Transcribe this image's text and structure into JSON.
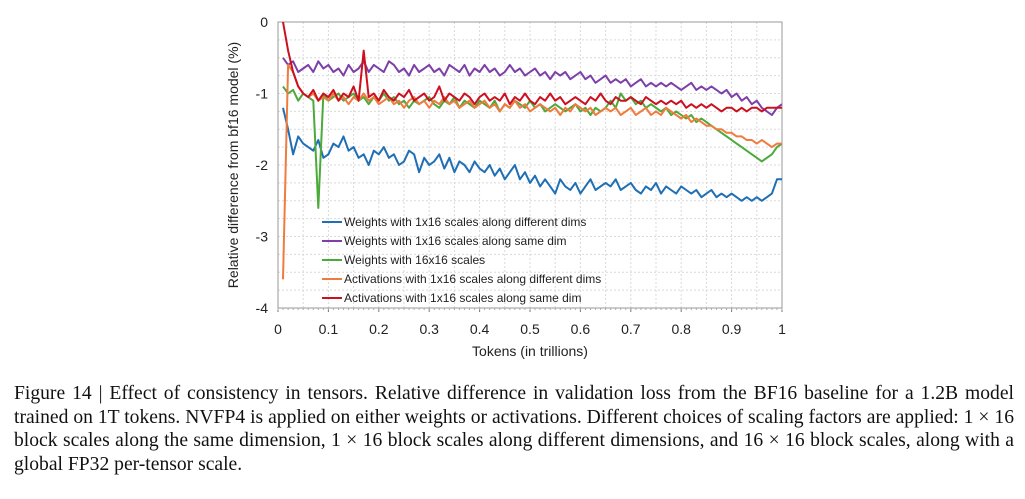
{
  "chart_data": {
    "type": "line",
    "title": "",
    "xlabel": "Tokens (in trillions)",
    "ylabel": "Relative difference from bf16 model (%)",
    "xlim": [
      0,
      1
    ],
    "ylim": [
      -4,
      0
    ],
    "x_ticks": [
      "0",
      "0.1",
      "0.2",
      "0.3",
      "0.4",
      "0.5",
      "0.6",
      "0.7",
      "0.8",
      "0.9",
      "1"
    ],
    "y_ticks": [
      "0",
      "-1",
      "-2",
      "-3",
      "-4"
    ],
    "grid": true,
    "legend_position": "lower-center",
    "series": [
      {
        "name": "Weights with 1x16 scales along different dims",
        "color": "#1f6fb5",
        "x": [
          0.01,
          0.02,
          0.03,
          0.04,
          0.05,
          0.06,
          0.07,
          0.08,
          0.09,
          0.1,
          0.11,
          0.12,
          0.13,
          0.14,
          0.15,
          0.16,
          0.17,
          0.18,
          0.19,
          0.2,
          0.21,
          0.22,
          0.23,
          0.24,
          0.25,
          0.26,
          0.27,
          0.28,
          0.29,
          0.3,
          0.31,
          0.32,
          0.33,
          0.34,
          0.35,
          0.36,
          0.37,
          0.38,
          0.39,
          0.4,
          0.41,
          0.42,
          0.43,
          0.44,
          0.45,
          0.46,
          0.47,
          0.48,
          0.49,
          0.5,
          0.51,
          0.52,
          0.53,
          0.54,
          0.55,
          0.56,
          0.57,
          0.58,
          0.59,
          0.6,
          0.61,
          0.62,
          0.63,
          0.64,
          0.65,
          0.66,
          0.67,
          0.68,
          0.69,
          0.7,
          0.71,
          0.72,
          0.73,
          0.74,
          0.75,
          0.76,
          0.77,
          0.78,
          0.79,
          0.8,
          0.81,
          0.82,
          0.83,
          0.84,
          0.85,
          0.86,
          0.87,
          0.88,
          0.89,
          0.9,
          0.91,
          0.92,
          0.93,
          0.94,
          0.95,
          0.96,
          0.97,
          0.98,
          0.99,
          1.0
        ],
        "values": [
          -1.2,
          -1.5,
          -1.85,
          -1.6,
          -1.7,
          -1.75,
          -1.8,
          -1.65,
          -1.9,
          -1.85,
          -1.7,
          -1.75,
          -1.6,
          -1.8,
          -1.75,
          -1.9,
          -1.85,
          -2.0,
          -1.8,
          -1.85,
          -1.75,
          -1.9,
          -1.85,
          -2.0,
          -1.95,
          -1.8,
          -1.85,
          -2.1,
          -1.9,
          -2.0,
          -1.95,
          -1.85,
          -2.05,
          -1.9,
          -2.1,
          -1.95,
          -2.0,
          -2.1,
          -1.95,
          -2.05,
          -2.1,
          -2.0,
          -2.15,
          -2.05,
          -2.2,
          -2.1,
          -2.0,
          -2.2,
          -2.1,
          -2.25,
          -2.15,
          -2.3,
          -2.2,
          -2.3,
          -2.4,
          -2.2,
          -2.3,
          -2.35,
          -2.25,
          -2.4,
          -2.3,
          -2.2,
          -2.35,
          -2.3,
          -2.25,
          -2.3,
          -2.2,
          -2.35,
          -2.3,
          -2.25,
          -2.35,
          -2.4,
          -2.3,
          -2.35,
          -2.25,
          -2.4,
          -2.3,
          -2.35,
          -2.4,
          -2.3,
          -2.35,
          -2.4,
          -2.35,
          -2.45,
          -2.4,
          -2.35,
          -2.45,
          -2.4,
          -2.45,
          -2.4,
          -2.45,
          -2.5,
          -2.45,
          -2.5,
          -2.45,
          -2.5,
          -2.45,
          -2.4,
          -2.2,
          -2.2
        ]
      },
      {
        "name": "Weights with 1x16 scales along same dim",
        "color": "#7d3fa8",
        "x": [
          0.01,
          0.02,
          0.03,
          0.04,
          0.05,
          0.06,
          0.07,
          0.08,
          0.09,
          0.1,
          0.11,
          0.12,
          0.13,
          0.14,
          0.15,
          0.16,
          0.17,
          0.18,
          0.19,
          0.2,
          0.21,
          0.22,
          0.23,
          0.24,
          0.25,
          0.26,
          0.27,
          0.28,
          0.29,
          0.3,
          0.31,
          0.32,
          0.33,
          0.34,
          0.35,
          0.36,
          0.37,
          0.38,
          0.39,
          0.4,
          0.41,
          0.42,
          0.43,
          0.44,
          0.45,
          0.46,
          0.47,
          0.48,
          0.49,
          0.5,
          0.51,
          0.52,
          0.53,
          0.54,
          0.55,
          0.56,
          0.57,
          0.58,
          0.59,
          0.6,
          0.61,
          0.62,
          0.63,
          0.64,
          0.65,
          0.66,
          0.67,
          0.68,
          0.69,
          0.7,
          0.71,
          0.72,
          0.73,
          0.74,
          0.75,
          0.76,
          0.77,
          0.78,
          0.79,
          0.8,
          0.81,
          0.82,
          0.83,
          0.84,
          0.85,
          0.86,
          0.87,
          0.88,
          0.89,
          0.9,
          0.91,
          0.92,
          0.93,
          0.94,
          0.95,
          0.96,
          0.97,
          0.98,
          0.99,
          1.0
        ],
        "values": [
          -0.5,
          -0.6,
          -0.55,
          -0.7,
          -0.65,
          -0.6,
          -0.7,
          -0.55,
          -0.65,
          -0.6,
          -0.7,
          -0.65,
          -0.75,
          -0.6,
          -0.7,
          -0.65,
          -0.55,
          -0.7,
          -0.6,
          -0.65,
          -0.7,
          -0.55,
          -0.6,
          -0.7,
          -0.65,
          -0.75,
          -0.6,
          -0.7,
          -0.65,
          -0.6,
          -0.7,
          -0.65,
          -0.75,
          -0.6,
          -0.65,
          -0.7,
          -0.6,
          -0.75,
          -0.65,
          -0.7,
          -0.6,
          -0.7,
          -0.65,
          -0.75,
          -0.7,
          -0.6,
          -0.7,
          -0.65,
          -0.75,
          -0.7,
          -0.65,
          -0.75,
          -0.7,
          -0.8,
          -0.7,
          -0.75,
          -0.7,
          -0.8,
          -0.75,
          -0.7,
          -0.8,
          -0.75,
          -0.85,
          -0.8,
          -0.75,
          -0.85,
          -0.8,
          -0.85,
          -0.8,
          -0.9,
          -0.85,
          -0.8,
          -0.9,
          -0.85,
          -0.9,
          -0.85,
          -0.9,
          -0.85,
          -0.9,
          -0.95,
          -0.9,
          -0.85,
          -0.95,
          -0.9,
          -0.95,
          -0.9,
          -0.95,
          -1.0,
          -0.95,
          -1.05,
          -1.0,
          -1.1,
          -1.05,
          -1.15,
          -1.1,
          -1.2,
          -1.25,
          -1.3,
          -1.2,
          -1.15
        ]
      },
      {
        "name": "Weights with 16x16 scales",
        "color": "#4caa3a",
        "x": [
          0.01,
          0.02,
          0.03,
          0.04,
          0.05,
          0.06,
          0.07,
          0.08,
          0.09,
          0.1,
          0.11,
          0.12,
          0.13,
          0.14,
          0.15,
          0.16,
          0.17,
          0.18,
          0.19,
          0.2,
          0.21,
          0.22,
          0.23,
          0.24,
          0.25,
          0.26,
          0.27,
          0.28,
          0.29,
          0.3,
          0.31,
          0.32,
          0.33,
          0.34,
          0.35,
          0.36,
          0.37,
          0.38,
          0.39,
          0.4,
          0.41,
          0.42,
          0.43,
          0.44,
          0.45,
          0.46,
          0.47,
          0.48,
          0.49,
          0.5,
          0.51,
          0.52,
          0.53,
          0.54,
          0.55,
          0.56,
          0.57,
          0.58,
          0.59,
          0.6,
          0.61,
          0.62,
          0.63,
          0.64,
          0.65,
          0.66,
          0.67,
          0.68,
          0.69,
          0.7,
          0.71,
          0.72,
          0.73,
          0.74,
          0.75,
          0.76,
          0.77,
          0.78,
          0.79,
          0.8,
          0.81,
          0.82,
          0.83,
          0.84,
          0.85,
          0.86,
          0.87,
          0.88,
          0.89,
          0.9,
          0.91,
          0.92,
          0.93,
          0.94,
          0.95,
          0.96,
          0.97,
          0.98,
          0.99,
          1.0
        ],
        "values": [
          -0.9,
          -1.0,
          -0.95,
          -1.1,
          -1.0,
          -1.05,
          -1.1,
          -2.6,
          -1.0,
          -1.1,
          -1.05,
          -1.0,
          -1.1,
          -1.05,
          -1.0,
          -1.1,
          -1.05,
          -1.15,
          -1.05,
          -1.1,
          -1.0,
          -1.1,
          -1.05,
          -1.15,
          -1.1,
          -1.2,
          -1.1,
          -1.15,
          -1.1,
          -1.05,
          -1.15,
          -1.2,
          -1.1,
          -1.15,
          -1.05,
          -1.2,
          -1.1,
          -1.15,
          -1.2,
          -1.1,
          -1.15,
          -1.2,
          -1.1,
          -1.25,
          -1.15,
          -1.2,
          -1.1,
          -1.15,
          -1.2,
          -1.1,
          -1.2,
          -1.15,
          -1.25,
          -1.2,
          -1.15,
          -1.2,
          -1.25,
          -1.2,
          -1.15,
          -1.25,
          -1.2,
          -1.3,
          -1.2,
          -1.25,
          -1.2,
          -1.1,
          -1.2,
          -1.0,
          -1.1,
          -1.05,
          -1.15,
          -1.1,
          -1.2,
          -1.15,
          -1.2,
          -1.25,
          -1.2,
          -1.3,
          -1.25,
          -1.3,
          -1.35,
          -1.3,
          -1.4,
          -1.35,
          -1.4,
          -1.45,
          -1.5,
          -1.55,
          -1.6,
          -1.65,
          -1.7,
          -1.75,
          -1.8,
          -1.85,
          -1.9,
          -1.95,
          -1.9,
          -1.85,
          -1.75,
          -1.7
        ]
      },
      {
        "name": "Activations with 1x16 scales along different dims",
        "color": "#f07b3f",
        "x": [
          0.01,
          0.02,
          0.03,
          0.04,
          0.05,
          0.06,
          0.07,
          0.08,
          0.09,
          0.1,
          0.11,
          0.12,
          0.13,
          0.14,
          0.15,
          0.16,
          0.17,
          0.18,
          0.19,
          0.2,
          0.21,
          0.22,
          0.23,
          0.24,
          0.25,
          0.26,
          0.27,
          0.28,
          0.29,
          0.3,
          0.31,
          0.32,
          0.33,
          0.34,
          0.35,
          0.36,
          0.37,
          0.38,
          0.39,
          0.4,
          0.41,
          0.42,
          0.43,
          0.44,
          0.45,
          0.46,
          0.47,
          0.48,
          0.49,
          0.5,
          0.51,
          0.52,
          0.53,
          0.54,
          0.55,
          0.56,
          0.57,
          0.58,
          0.59,
          0.6,
          0.61,
          0.62,
          0.63,
          0.64,
          0.65,
          0.66,
          0.67,
          0.68,
          0.69,
          0.7,
          0.71,
          0.72,
          0.73,
          0.74,
          0.75,
          0.76,
          0.77,
          0.78,
          0.79,
          0.8,
          0.81,
          0.82,
          0.83,
          0.84,
          0.85,
          0.86,
          0.87,
          0.88,
          0.89,
          0.9,
          0.91,
          0.92,
          0.93,
          0.94,
          0.95,
          0.96,
          0.97,
          0.98,
          0.99,
          1.0
        ],
        "values": [
          -3.6,
          -0.6,
          -0.7,
          -0.9,
          -1.0,
          -1.05,
          -1.0,
          -1.1,
          -1.05,
          -1.1,
          -1.0,
          -1.1,
          -1.05,
          -1.15,
          -1.05,
          -1.1,
          -1.0,
          -1.1,
          -1.05,
          -1.15,
          -1.1,
          -1.05,
          -1.15,
          -1.1,
          -1.2,
          -1.1,
          -1.05,
          -1.15,
          -1.1,
          -1.2,
          -1.1,
          -1.15,
          -1.05,
          -1.15,
          -1.1,
          -1.2,
          -1.15,
          -1.1,
          -1.2,
          -1.15,
          -1.1,
          -1.2,
          -1.15,
          -1.25,
          -1.15,
          -1.2,
          -1.1,
          -1.2,
          -1.15,
          -1.25,
          -1.2,
          -1.15,
          -1.2,
          -1.25,
          -1.2,
          -1.3,
          -1.2,
          -1.25,
          -1.15,
          -1.2,
          -1.25,
          -1.2,
          -1.3,
          -1.25,
          -1.2,
          -1.25,
          -1.2,
          -1.3,
          -1.25,
          -1.2,
          -1.3,
          -1.25,
          -1.2,
          -1.3,
          -1.25,
          -1.3,
          -1.2,
          -1.25,
          -1.3,
          -1.35,
          -1.3,
          -1.4,
          -1.35,
          -1.4,
          -1.45,
          -1.45,
          -1.5,
          -1.5,
          -1.55,
          -1.55,
          -1.6,
          -1.6,
          -1.65,
          -1.65,
          -1.7,
          -1.65,
          -1.7,
          -1.75,
          -1.7,
          -1.7
        ]
      },
      {
        "name": "Activations with 1x16 scales along same dim",
        "color": "#cc1020",
        "x": [
          0.01,
          0.02,
          0.03,
          0.04,
          0.05,
          0.06,
          0.07,
          0.08,
          0.09,
          0.1,
          0.11,
          0.12,
          0.13,
          0.14,
          0.15,
          0.16,
          0.17,
          0.18,
          0.19,
          0.2,
          0.21,
          0.22,
          0.23,
          0.24,
          0.25,
          0.26,
          0.27,
          0.28,
          0.29,
          0.3,
          0.31,
          0.32,
          0.33,
          0.34,
          0.35,
          0.36,
          0.37,
          0.38,
          0.39,
          0.4,
          0.41,
          0.42,
          0.43,
          0.44,
          0.45,
          0.46,
          0.47,
          0.48,
          0.49,
          0.5,
          0.51,
          0.52,
          0.53,
          0.54,
          0.55,
          0.56,
          0.57,
          0.58,
          0.59,
          0.6,
          0.61,
          0.62,
          0.63,
          0.64,
          0.65,
          0.66,
          0.67,
          0.68,
          0.69,
          0.7,
          0.71,
          0.72,
          0.73,
          0.74,
          0.75,
          0.76,
          0.77,
          0.78,
          0.79,
          0.8,
          0.81,
          0.82,
          0.83,
          0.84,
          0.85,
          0.86,
          0.87,
          0.88,
          0.89,
          0.9,
          0.91,
          0.92,
          0.93,
          0.94,
          0.95,
          0.96,
          0.97,
          0.98,
          0.99,
          1.0
        ],
        "values": [
          0.0,
          -0.4,
          -0.7,
          -0.9,
          -1.0,
          -1.05,
          -0.95,
          -1.1,
          -1.0,
          -1.05,
          -0.95,
          -1.1,
          -1.0,
          -1.05,
          -0.9,
          -1.1,
          -0.4,
          -1.05,
          -1.0,
          -1.1,
          -0.95,
          -1.05,
          -1.1,
          -1.0,
          -1.05,
          -0.95,
          -1.1,
          -1.05,
          -1.0,
          -1.1,
          -1.05,
          -0.9,
          -1.1,
          -1.0,
          -1.05,
          -1.1,
          -1.0,
          -1.05,
          -1.15,
          -1.05,
          -1.0,
          -1.1,
          -1.05,
          -1.1,
          -1.0,
          -1.15,
          -1.05,
          -1.1,
          -1.0,
          -1.1,
          -1.15,
          -1.05,
          -1.1,
          -1.0,
          -1.1,
          -1.05,
          -1.15,
          -1.1,
          -1.05,
          -1.1,
          -1.15,
          -1.05,
          -1.1,
          -1.0,
          -1.1,
          -1.15,
          -1.05,
          -1.1,
          -1.1,
          -1.05,
          -1.1,
          -1.15,
          -1.05,
          -1.1,
          -1.15,
          -1.1,
          -1.15,
          -1.1,
          -1.15,
          -1.1,
          -1.2,
          -1.15,
          -1.2,
          -1.15,
          -1.2,
          -1.15,
          -1.2,
          -1.25,
          -1.2,
          -1.2,
          -1.25,
          -1.2,
          -1.25,
          -1.2,
          -1.2,
          -1.25,
          -1.2,
          -1.2,
          -1.2,
          -1.2
        ]
      }
    ]
  },
  "caption": {
    "text": "Figure 14 | Effect of consistency in tensors. Relative difference in validation loss from the BF16 baseline for a 1.2B model trained on 1T tokens. NVFP4 is applied on either weights or activations. Different choices of scaling factors are applied: 1 × 16 block scales along the same dimension, 1 × 16 block scales along different dimensions, and 16 × 16 block scales, along with a global FP32 per-tensor scale."
  }
}
